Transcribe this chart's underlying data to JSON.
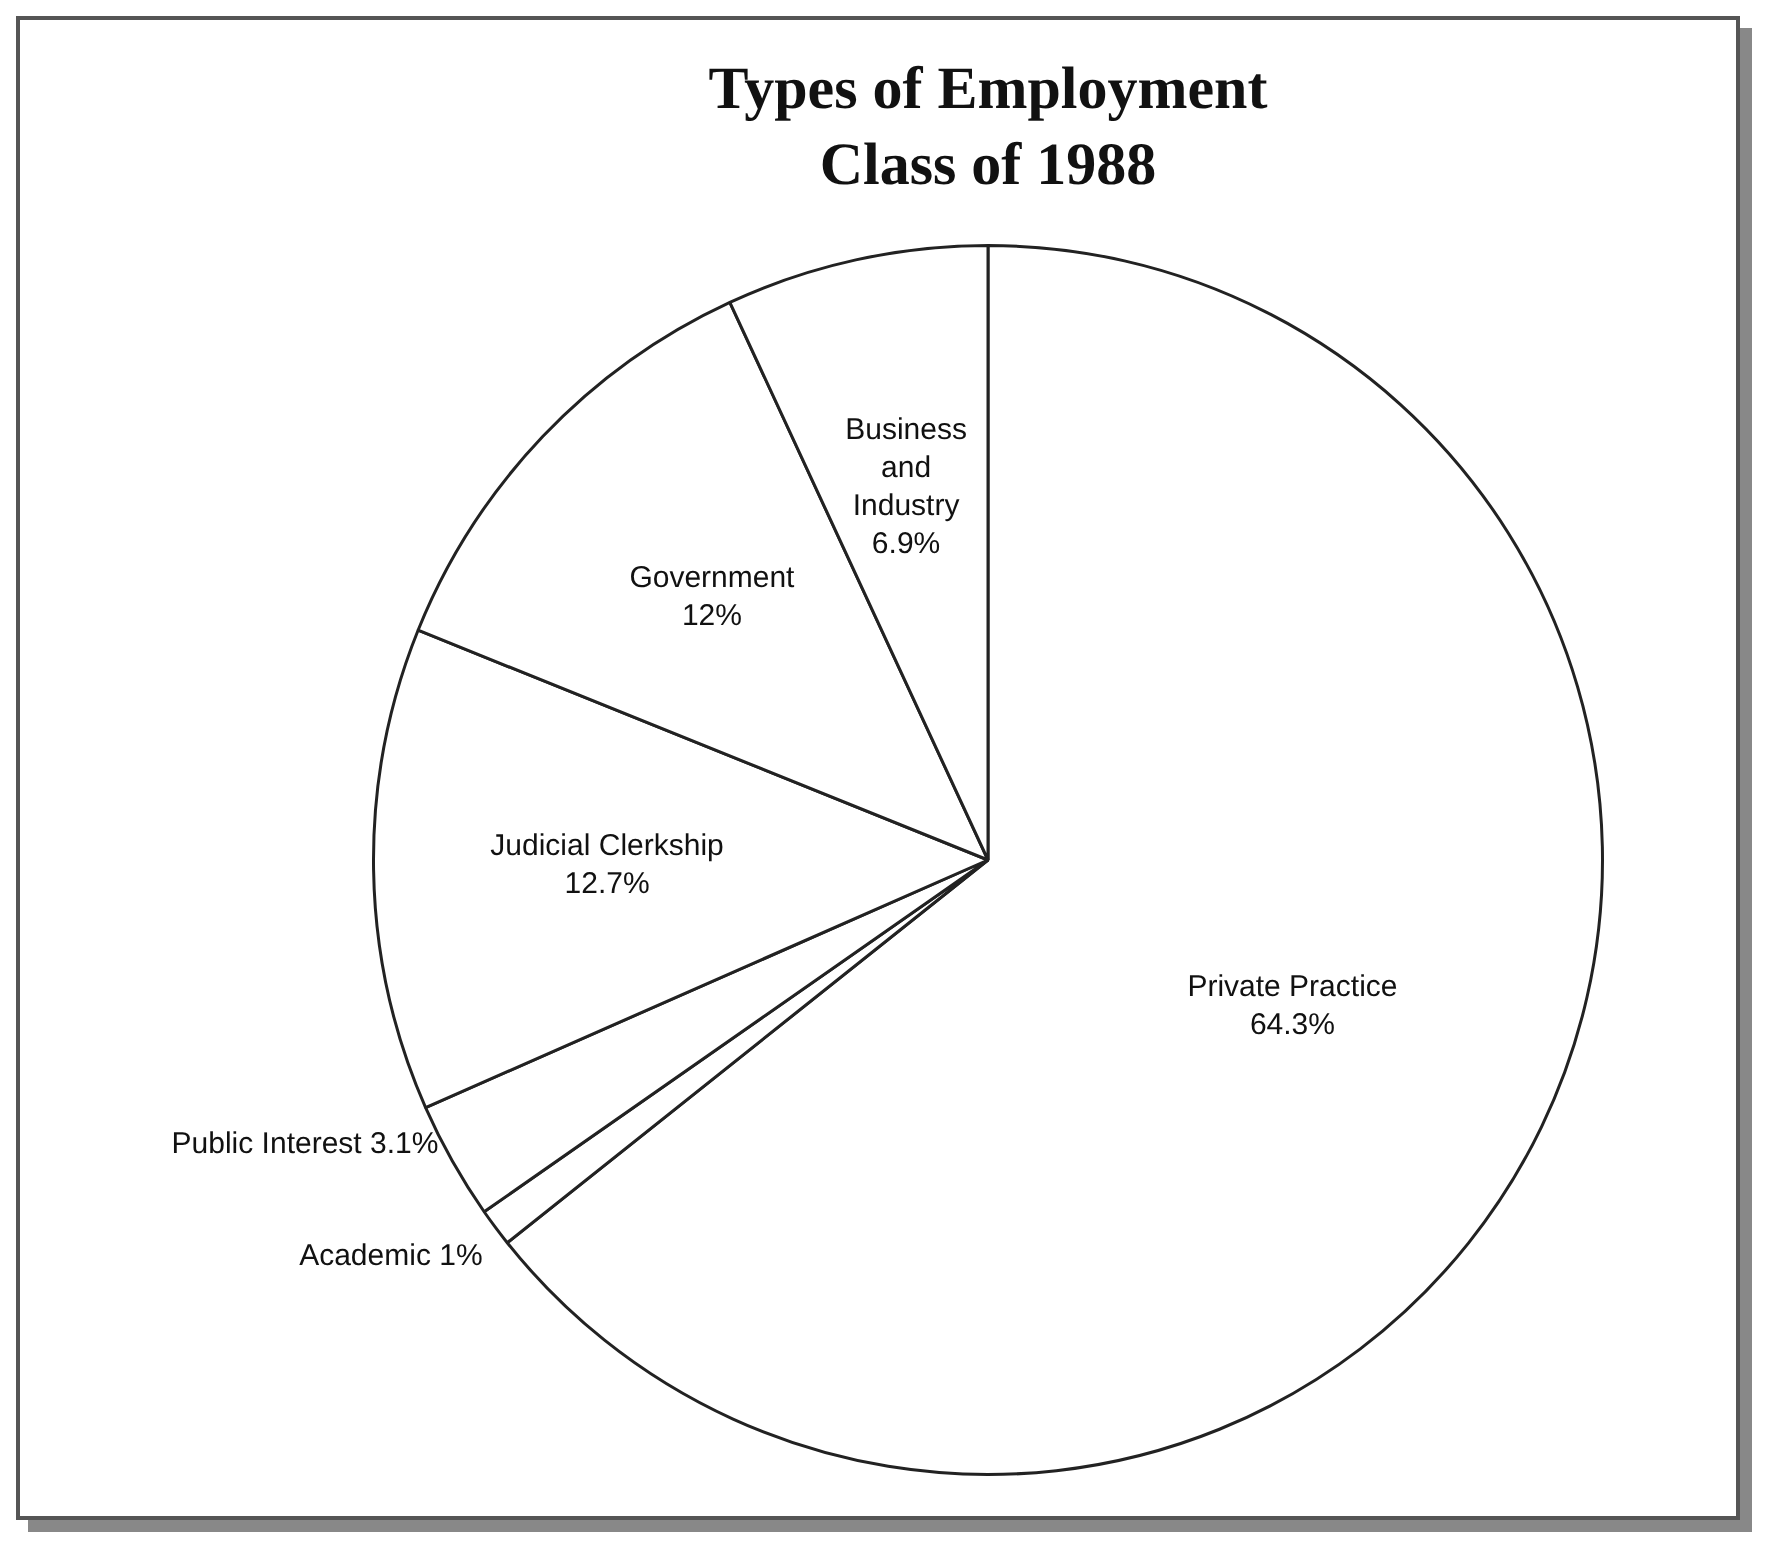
{
  "chart_data": {
    "type": "pie",
    "title": "Types of Employment",
    "subtitle": "Class of 1988",
    "categories": [
      "Private Practice",
      "Academic",
      "Public Interest",
      "Judicial Clerkship",
      "Government",
      "Business and Industry"
    ],
    "values": [
      64.3,
      1,
      3.1,
      12.7,
      12,
      6.9
    ],
    "value_labels": [
      "64.3%",
      "1%",
      "3.1%",
      "12.7%",
      "12%",
      "6.9%"
    ],
    "colors": [
      "#ffffff",
      "#ffffff",
      "#ffffff",
      "#ffffff",
      "#ffffff",
      "#ffffff"
    ],
    "legend": false
  }
}
